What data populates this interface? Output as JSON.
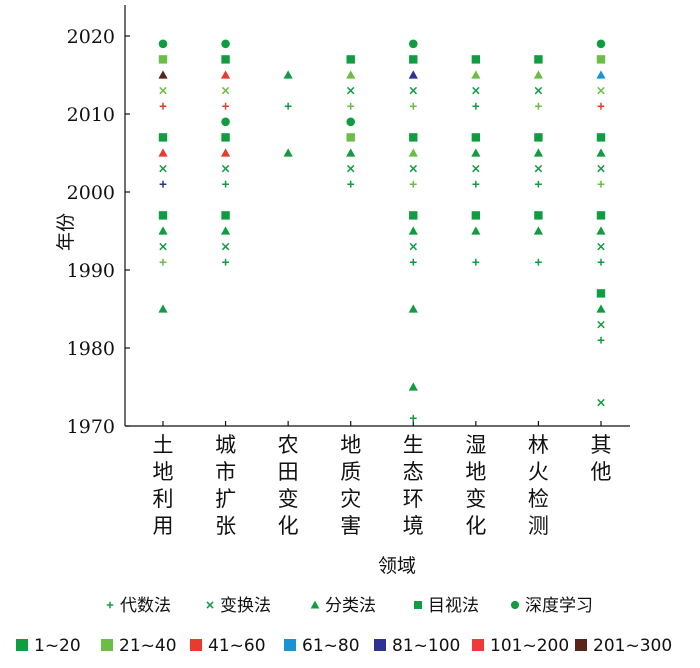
{
  "chart_data": {
    "type": "scatter",
    "xlabel": "领域",
    "ylabel": "年份",
    "ylim": [
      1970,
      2022
    ],
    "y_ticks": [
      "1970",
      "1980",
      "1990",
      "2000",
      "2010",
      "2020"
    ],
    "grid": false,
    "categories": [
      "土地利用",
      "城市扩张",
      "农田变化",
      "地质灾害",
      "生态环境",
      "湿地变化",
      "林火检测",
      "其他"
    ],
    "method_legend": [
      {
        "key": "algebra",
        "label": "代数法",
        "marker": "plus"
      },
      {
        "key": "transform",
        "label": "变换法",
        "marker": "cross"
      },
      {
        "key": "classify",
        "label": "分类法",
        "marker": "triangle"
      },
      {
        "key": "visual",
        "label": "目视法",
        "marker": "square"
      },
      {
        "key": "deep",
        "label": "深度学习",
        "marker": "circle"
      }
    ],
    "count_legend": [
      {
        "label": "1~20",
        "color": "#119c41"
      },
      {
        "label": "21~40",
        "color": "#6cbd45"
      },
      {
        "label": "41~60",
        "color": "#e63b2e"
      },
      {
        "label": "61~80",
        "color": "#1b93d2"
      },
      {
        "label": "81~100",
        "color": "#2e3293"
      },
      {
        "label": "101~200",
        "color": "#ee3a3a"
      },
      {
        "label": "201~300",
        "color": "#5b2419"
      }
    ],
    "series": [
      {
        "category": "土地利用",
        "points": [
          {
            "year": 2019,
            "method": "deep",
            "count": "1~20"
          },
          {
            "year": 2017,
            "method": "visual",
            "count": "21~40"
          },
          {
            "year": 2015,
            "method": "classify",
            "count": "201~300"
          },
          {
            "year": 2013,
            "method": "transform",
            "count": "21~40"
          },
          {
            "year": 2011,
            "method": "algebra",
            "count": "41~60"
          },
          {
            "year": 2007,
            "method": "visual",
            "count": "1~20"
          },
          {
            "year": 2005,
            "method": "classify",
            "count": "41~60"
          },
          {
            "year": 2003,
            "method": "transform",
            "count": "1~20"
          },
          {
            "year": 2001,
            "method": "algebra",
            "count": "81~100"
          },
          {
            "year": 1997,
            "method": "visual",
            "count": "1~20"
          },
          {
            "year": 1995,
            "method": "classify",
            "count": "1~20"
          },
          {
            "year": 1993,
            "method": "transform",
            "count": "1~20"
          },
          {
            "year": 1991,
            "method": "algebra",
            "count": "21~40"
          },
          {
            "year": 1985,
            "method": "classify",
            "count": "1~20"
          }
        ]
      },
      {
        "category": "城市扩张",
        "points": [
          {
            "year": 2019,
            "method": "deep",
            "count": "1~20"
          },
          {
            "year": 2017,
            "method": "visual",
            "count": "1~20"
          },
          {
            "year": 2015,
            "method": "classify",
            "count": "41~60"
          },
          {
            "year": 2013,
            "method": "transform",
            "count": "21~40"
          },
          {
            "year": 2011,
            "method": "algebra",
            "count": "41~60"
          },
          {
            "year": 2009,
            "method": "deep",
            "count": "1~20"
          },
          {
            "year": 2007,
            "method": "visual",
            "count": "1~20"
          },
          {
            "year": 2005,
            "method": "classify",
            "count": "41~60"
          },
          {
            "year": 2003,
            "method": "transform",
            "count": "1~20"
          },
          {
            "year": 2001,
            "method": "algebra",
            "count": "1~20"
          },
          {
            "year": 1997,
            "method": "visual",
            "count": "1~20"
          },
          {
            "year": 1995,
            "method": "classify",
            "count": "1~20"
          },
          {
            "year": 1993,
            "method": "transform",
            "count": "1~20"
          },
          {
            "year": 1991,
            "method": "algebra",
            "count": "1~20"
          }
        ]
      },
      {
        "category": "农田变化",
        "points": [
          {
            "year": 2015,
            "method": "classify",
            "count": "1~20"
          },
          {
            "year": 2011,
            "method": "algebra",
            "count": "1~20"
          },
          {
            "year": 2005,
            "method": "classify",
            "count": "1~20"
          }
        ]
      },
      {
        "category": "地质灾害",
        "points": [
          {
            "year": 2017,
            "method": "visual",
            "count": "1~20"
          },
          {
            "year": 2015,
            "method": "classify",
            "count": "21~40"
          },
          {
            "year": 2013,
            "method": "transform",
            "count": "1~20"
          },
          {
            "year": 2011,
            "method": "algebra",
            "count": "21~40"
          },
          {
            "year": 2009,
            "method": "deep",
            "count": "1~20"
          },
          {
            "year": 2007,
            "method": "visual",
            "count": "21~40"
          },
          {
            "year": 2005,
            "method": "classify",
            "count": "1~20"
          },
          {
            "year": 2003,
            "method": "transform",
            "count": "1~20"
          },
          {
            "year": 2001,
            "method": "algebra",
            "count": "1~20"
          }
        ]
      },
      {
        "category": "生态环境",
        "points": [
          {
            "year": 2019,
            "method": "deep",
            "count": "1~20"
          },
          {
            "year": 2017,
            "method": "visual",
            "count": "1~20"
          },
          {
            "year": 2015,
            "method": "classify",
            "count": "81~100"
          },
          {
            "year": 2013,
            "method": "transform",
            "count": "1~20"
          },
          {
            "year": 2011,
            "method": "algebra",
            "count": "21~40"
          },
          {
            "year": 2007,
            "method": "visual",
            "count": "1~20"
          },
          {
            "year": 2005,
            "method": "classify",
            "count": "21~40"
          },
          {
            "year": 2003,
            "method": "transform",
            "count": "1~20"
          },
          {
            "year": 2001,
            "method": "algebra",
            "count": "21~40"
          },
          {
            "year": 1997,
            "method": "visual",
            "count": "1~20"
          },
          {
            "year": 1995,
            "method": "classify",
            "count": "1~20"
          },
          {
            "year": 1993,
            "method": "transform",
            "count": "1~20"
          },
          {
            "year": 1991,
            "method": "algebra",
            "count": "1~20"
          },
          {
            "year": 1985,
            "method": "classify",
            "count": "1~20"
          },
          {
            "year": 1975,
            "method": "classify",
            "count": "1~20"
          },
          {
            "year": 1971,
            "method": "algebra",
            "count": "1~20"
          }
        ]
      },
      {
        "category": "湿地变化",
        "points": [
          {
            "year": 2017,
            "method": "visual",
            "count": "1~20"
          },
          {
            "year": 2015,
            "method": "classify",
            "count": "21~40"
          },
          {
            "year": 2013,
            "method": "transform",
            "count": "1~20"
          },
          {
            "year": 2011,
            "method": "algebra",
            "count": "1~20"
          },
          {
            "year": 2007,
            "method": "visual",
            "count": "1~20"
          },
          {
            "year": 2005,
            "method": "classify",
            "count": "1~20"
          },
          {
            "year": 2003,
            "method": "transform",
            "count": "1~20"
          },
          {
            "year": 2001,
            "method": "algebra",
            "count": "1~20"
          },
          {
            "year": 1997,
            "method": "visual",
            "count": "1~20"
          },
          {
            "year": 1995,
            "method": "classify",
            "count": "1~20"
          },
          {
            "year": 1991,
            "method": "algebra",
            "count": "1~20"
          }
        ]
      },
      {
        "category": "林火检测",
        "points": [
          {
            "year": 2017,
            "method": "visual",
            "count": "1~20"
          },
          {
            "year": 2015,
            "method": "classify",
            "count": "21~40"
          },
          {
            "year": 2013,
            "method": "transform",
            "count": "1~20"
          },
          {
            "year": 2011,
            "method": "algebra",
            "count": "21~40"
          },
          {
            "year": 2007,
            "method": "visual",
            "count": "1~20"
          },
          {
            "year": 2005,
            "method": "classify",
            "count": "1~20"
          },
          {
            "year": 2003,
            "method": "transform",
            "count": "1~20"
          },
          {
            "year": 2001,
            "method": "algebra",
            "count": "1~20"
          },
          {
            "year": 1997,
            "method": "visual",
            "count": "1~20"
          },
          {
            "year": 1995,
            "method": "classify",
            "count": "1~20"
          },
          {
            "year": 1991,
            "method": "algebra",
            "count": "1~20"
          }
        ]
      },
      {
        "category": "其他",
        "points": [
          {
            "year": 2019,
            "method": "deep",
            "count": "1~20"
          },
          {
            "year": 2017,
            "method": "visual",
            "count": "21~40"
          },
          {
            "year": 2015,
            "method": "classify",
            "count": "61~80"
          },
          {
            "year": 2013,
            "method": "transform",
            "count": "21~40"
          },
          {
            "year": 2011,
            "method": "algebra",
            "count": "41~60"
          },
          {
            "year": 2007,
            "method": "visual",
            "count": "1~20"
          },
          {
            "year": 2005,
            "method": "classify",
            "count": "1~20"
          },
          {
            "year": 2003,
            "method": "transform",
            "count": "1~20"
          },
          {
            "year": 2001,
            "method": "algebra",
            "count": "21~40"
          },
          {
            "year": 1997,
            "method": "visual",
            "count": "1~20"
          },
          {
            "year": 1995,
            "method": "classify",
            "count": "1~20"
          },
          {
            "year": 1993,
            "method": "transform",
            "count": "1~20"
          },
          {
            "year": 1991,
            "method": "algebra",
            "count": "1~20"
          },
          {
            "year": 1987,
            "method": "visual",
            "count": "1~20"
          },
          {
            "year": 1985,
            "method": "classify",
            "count": "1~20"
          },
          {
            "year": 1983,
            "method": "transform",
            "count": "1~20"
          },
          {
            "year": 1981,
            "method": "algebra",
            "count": "1~20"
          },
          {
            "year": 1973,
            "method": "transform",
            "count": "1~20"
          }
        ]
      }
    ]
  }
}
